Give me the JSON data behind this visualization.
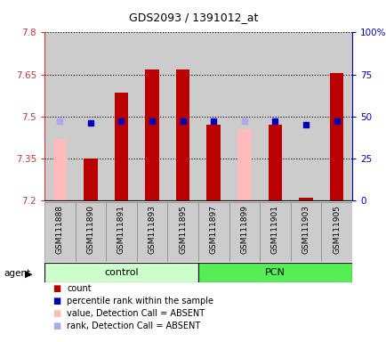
{
  "title": "GDS2093 / 1391012_at",
  "samples": [
    "GSM111888",
    "GSM111890",
    "GSM111891",
    "GSM111893",
    "GSM111895",
    "GSM111897",
    "GSM111899",
    "GSM111901",
    "GSM111903",
    "GSM111905"
  ],
  "ylim_left": [
    7.2,
    7.8
  ],
  "ylim_right": [
    0,
    100
  ],
  "yticks_left": [
    7.2,
    7.35,
    7.5,
    7.65,
    7.8
  ],
  "yticks_right": [
    0,
    25,
    50,
    75,
    100
  ],
  "bar_bottom": 7.2,
  "values": [
    7.42,
    7.35,
    7.585,
    7.668,
    7.668,
    7.47,
    7.455,
    7.47,
    7.21,
    7.655
  ],
  "is_absent": [
    true,
    false,
    false,
    false,
    false,
    false,
    true,
    false,
    false,
    false
  ],
  "percentile_rank": [
    47,
    46,
    47,
    47,
    47,
    47,
    47,
    47,
    45,
    47
  ],
  "absent_rank_flag": [
    true,
    false,
    false,
    false,
    false,
    false,
    true,
    false,
    false,
    false
  ],
  "bar_color_present": "#bb0000",
  "bar_color_absent": "#ffbbbb",
  "rank_color_present": "#0000bb",
  "rank_color_absent": "#aaaaee",
  "col_bg_color": "#cccccc",
  "plot_bg_color": "#ffffff",
  "control_color_light": "#ccffcc",
  "control_color_dark": "#66ee66",
  "pcn_color": "#55ee55",
  "left_axis_color": "#cc3333",
  "right_axis_color": "#0000cc",
  "grid_color": "#000000",
  "group_border_color": "#000000"
}
